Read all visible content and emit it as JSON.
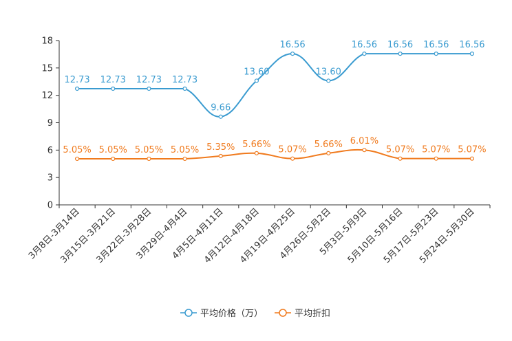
{
  "chart_data": {
    "type": "line",
    "categories": [
      "3月8日-3月14日",
      "3月15日-3月21日",
      "3月22日-3月28日",
      "3月29日-4月4日",
      "4月5日-4月11日",
      "4月12日-4月18日",
      "4月19日-4月25日",
      "4月26日-5月2日",
      "5月3日-5月9日",
      "5月10日-5月16日",
      "5月17日-5月23日",
      "5月24日-5月30日"
    ],
    "ylim": [
      0,
      18
    ],
    "yticks": [
      0,
      3,
      6,
      9,
      12,
      15,
      18
    ],
    "series": [
      {
        "name": "平均价格（万）",
        "color": "#3a9bd0",
        "values": [
          12.73,
          12.73,
          12.73,
          12.73,
          9.66,
          13.6,
          16.56,
          13.6,
          16.56,
          16.56,
          16.56,
          16.56
        ],
        "labels": [
          "12.73",
          "12.73",
          "12.73",
          "12.73",
          "9.66",
          "13.60",
          "16.56",
          "13.60",
          "16.56",
          "16.56",
          "16.56",
          "16.56"
        ]
      },
      {
        "name": "平均折扣",
        "color": "#f07a1d",
        "values": [
          5.05,
          5.05,
          5.05,
          5.05,
          5.35,
          5.66,
          5.07,
          5.66,
          6.01,
          5.07,
          5.07,
          5.07
        ],
        "labels": [
          "5.05%",
          "5.05%",
          "5.05%",
          "5.05%",
          "5.35%",
          "5.66%",
          "5.07%",
          "5.66%",
          "6.01%",
          "5.07%",
          "5.07%",
          "5.07%"
        ]
      }
    ]
  }
}
